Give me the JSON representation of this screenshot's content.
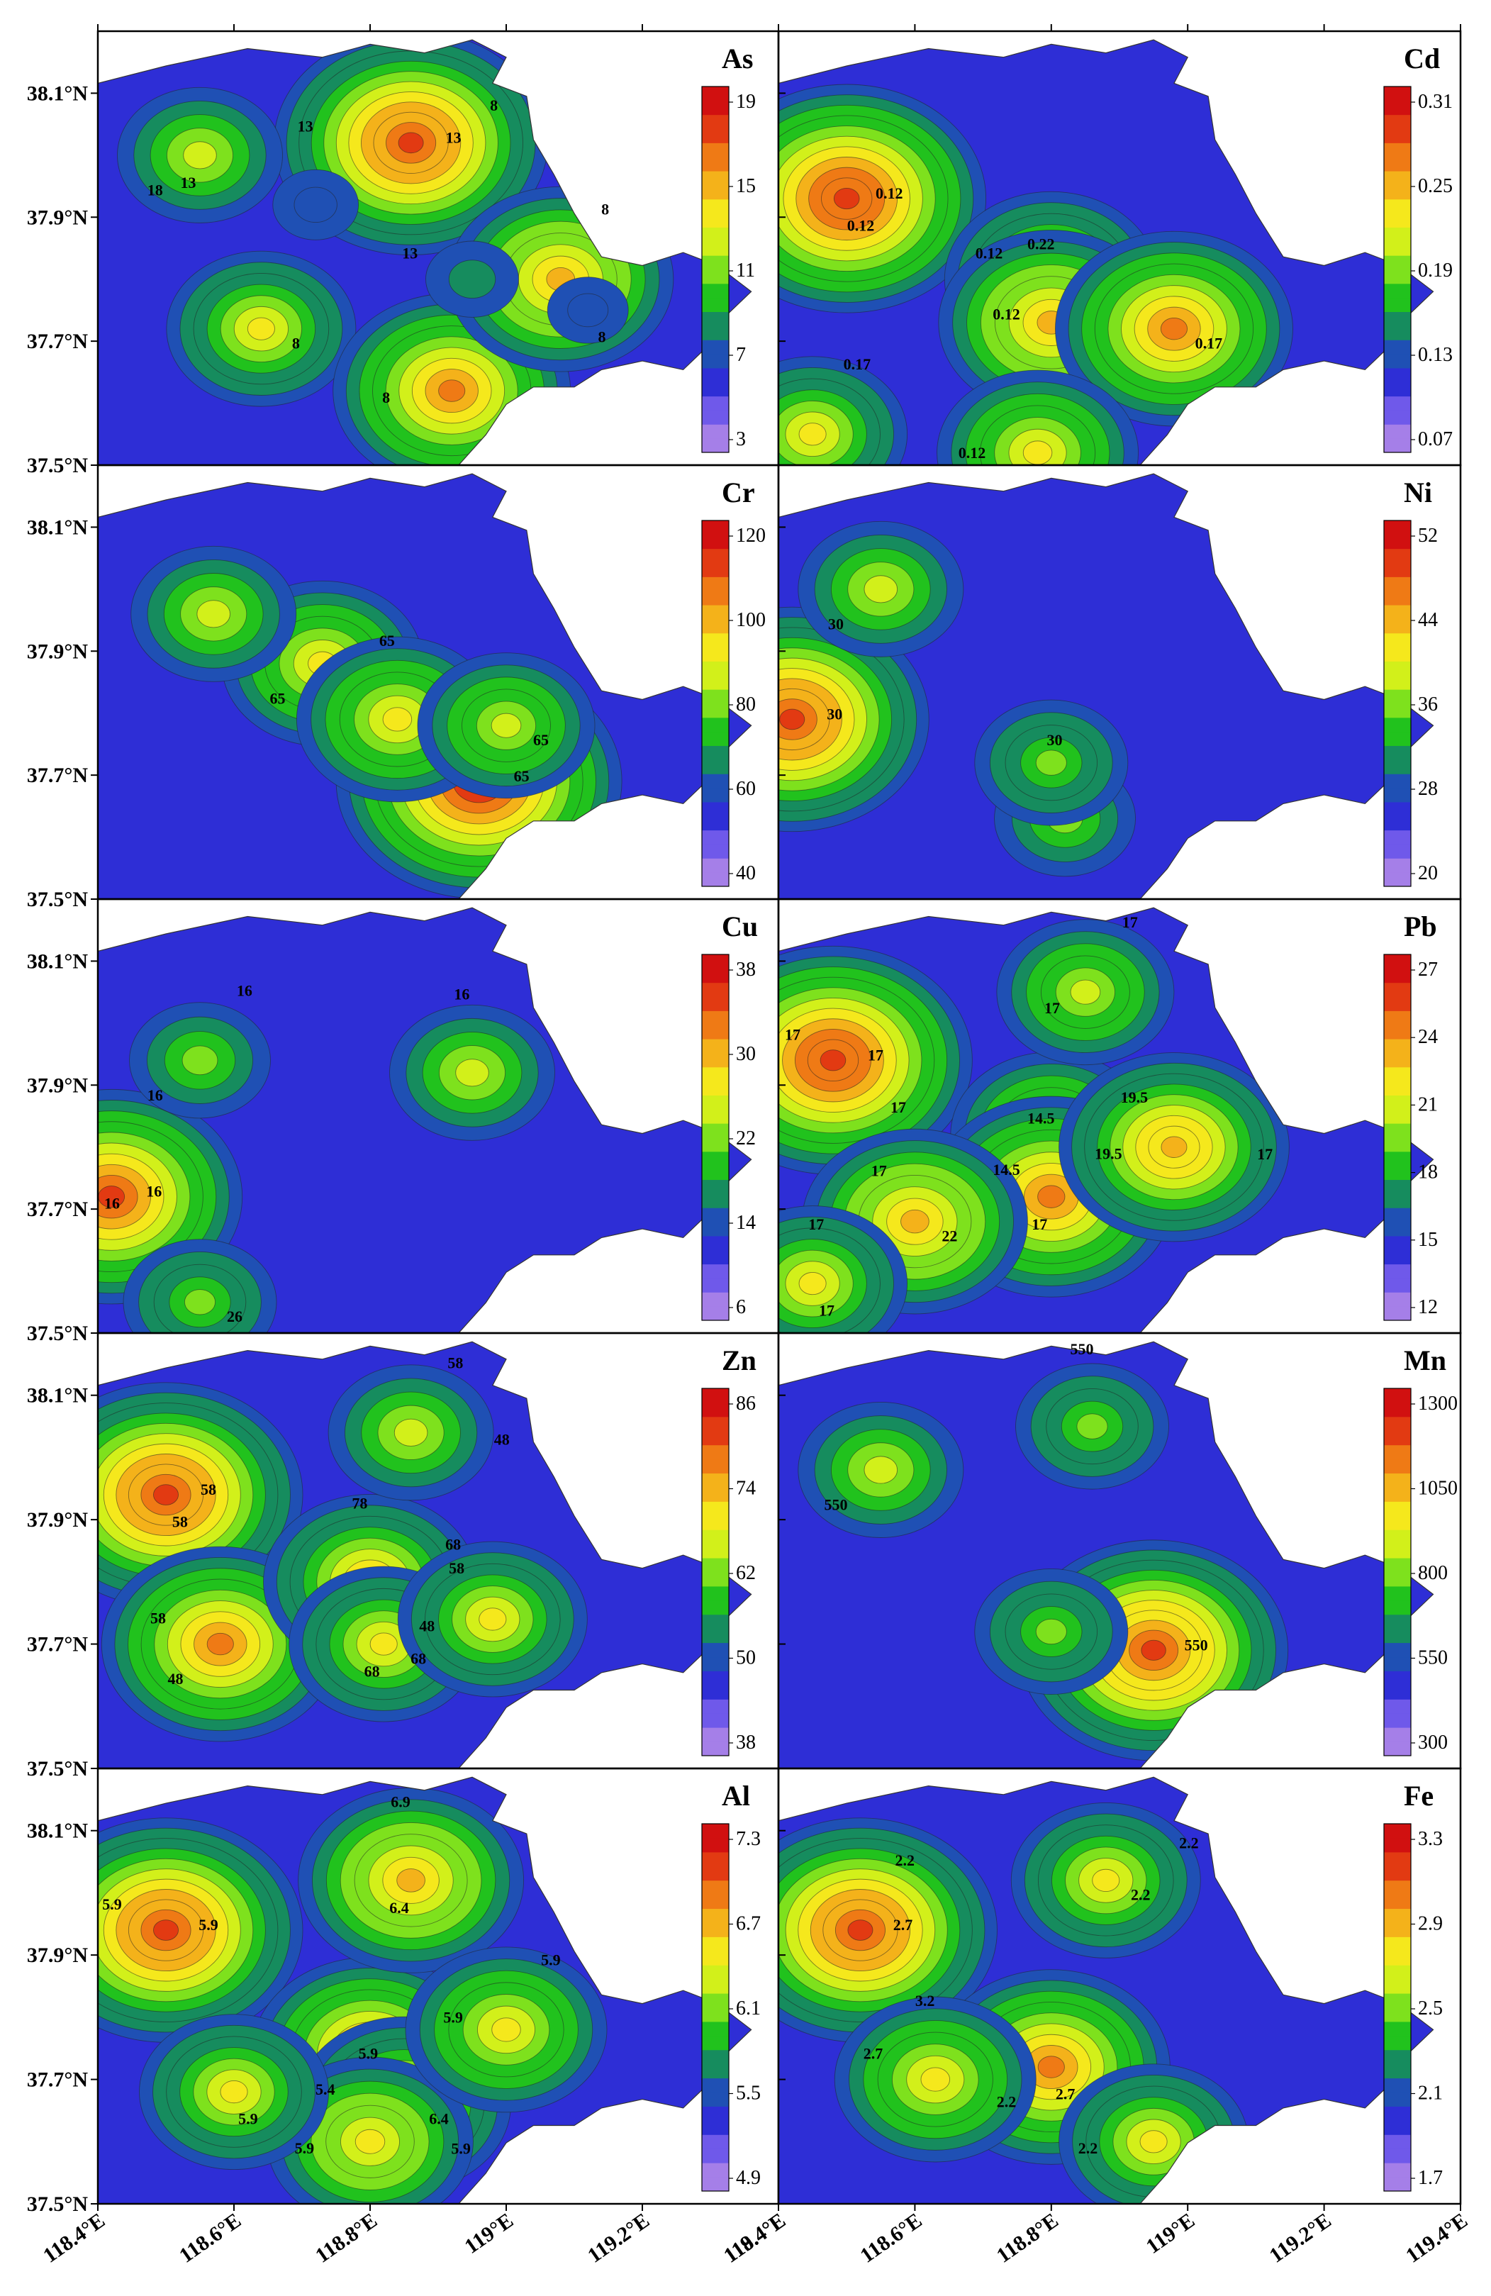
{
  "figure": {
    "latitude_ticks": [
      "38.1°N",
      "37.9°N",
      "37.7°N",
      "37.5°N"
    ],
    "longitude_ticks": [
      "118.4°E",
      "118.6°E",
      "118.8°E",
      "119°E",
      "119.2°E",
      "119.4°E"
    ]
  },
  "colors": {
    "ramp": [
      "#a57fe8",
      "#6f59ea",
      "#2e2ed6",
      "#1f50b4",
      "#168c5e",
      "#21c21d",
      "#7ee11d",
      "#d2f01a",
      "#f5e81c",
      "#f4b21a",
      "#ef7a15",
      "#e23a12",
      "#d11010"
    ],
    "contour": "#222222"
  },
  "panels": [
    {
      "element": "As",
      "colorbar_labels": [
        "19",
        "15",
        "11",
        "7",
        "3"
      ],
      "contour_labels": [
        "13",
        "18",
        "13",
        "8",
        "8",
        "8",
        "8",
        "13",
        "8",
        "13"
      ],
      "hotspots": [
        {
          "lon": 118.86,
          "lat": 38.02,
          "v": 0.9
        },
        {
          "lon": 118.55,
          "lat": 38.0,
          "v": 0.45
        },
        {
          "lon": 118.72,
          "lat": 37.92,
          "v": 0.12
        },
        {
          "lon": 118.64,
          "lat": 37.72,
          "v": 0.55
        },
        {
          "lon": 118.92,
          "lat": 37.62,
          "v": 0.75
        },
        {
          "lon": 119.08,
          "lat": 37.8,
          "v": 0.7
        },
        {
          "lon": 119.12,
          "lat": 37.75,
          "v": 0.1
        },
        {
          "lon": 118.95,
          "lat": 37.8,
          "v": 0.15
        }
      ]
    },
    {
      "element": "Cd",
      "colorbar_labels": [
        "0.31",
        "0.25",
        "0.19",
        "0.13",
        "0.07"
      ],
      "contour_labels": [
        "0.12",
        "0.12",
        "0.22",
        "0.17",
        "0.12",
        "0.17",
        "0.12",
        "0.12"
      ],
      "hotspots": [
        {
          "lon": 118.5,
          "lat": 37.93,
          "v": 0.92
        },
        {
          "lon": 118.8,
          "lat": 37.8,
          "v": 0.65
        },
        {
          "lon": 118.8,
          "lat": 37.73,
          "v": 0.7
        },
        {
          "lon": 118.98,
          "lat": 37.72,
          "v": 0.75
        },
        {
          "lon": 118.78,
          "lat": 37.52,
          "v": 0.6
        },
        {
          "lon": 118.45,
          "lat": 37.55,
          "v": 0.55
        }
      ]
    },
    {
      "element": "Cr",
      "colorbar_labels": [
        "120",
        "100",
        "80",
        "60",
        "40"
      ],
      "contour_labels": [
        "65",
        "65",
        "65",
        "65"
      ],
      "hotspots": [
        {
          "lon": 118.96,
          "lat": 37.69,
          "v": 0.95
        },
        {
          "lon": 118.73,
          "lat": 37.88,
          "v": 0.6
        },
        {
          "lon": 118.84,
          "lat": 37.79,
          "v": 0.6
        },
        {
          "lon": 119.0,
          "lat": 37.78,
          "v": 0.5
        },
        {
          "lon": 118.57,
          "lat": 37.96,
          "v": 0.45
        }
      ]
    },
    {
      "element": "Ni",
      "colorbar_labels": [
        "52",
        "44",
        "36",
        "28",
        "20"
      ],
      "contour_labels": [
        "30",
        "30",
        "30"
      ],
      "hotspots": [
        {
          "lon": 118.42,
          "lat": 37.79,
          "v": 0.9
        },
        {
          "lon": 118.55,
          "lat": 38.0,
          "v": 0.45
        },
        {
          "lon": 118.82,
          "lat": 37.63,
          "v": 0.35
        },
        {
          "lon": 118.8,
          "lat": 37.72,
          "v": 0.4
        }
      ]
    },
    {
      "element": "Cu",
      "colorbar_labels": [
        "38",
        "30",
        "22",
        "14",
        "6"
      ],
      "contour_labels": [
        "16",
        "16",
        "16",
        "26",
        "16",
        "16"
      ],
      "hotspots": [
        {
          "lon": 118.42,
          "lat": 37.72,
          "v": 0.85
        },
        {
          "lon": 118.55,
          "lat": 37.94,
          "v": 0.35
        },
        {
          "lon": 118.95,
          "lat": 37.92,
          "v": 0.45
        },
        {
          "lon": 118.55,
          "lat": 37.55,
          "v": 0.4
        }
      ]
    },
    {
      "element": "Pb",
      "colorbar_labels": [
        "27",
        "24",
        "21",
        "18",
        "15",
        "12"
      ],
      "contour_labels": [
        "17",
        "14.5",
        "14.5",
        "22",
        "19.5",
        "17",
        "17",
        "17",
        "19.5",
        "17",
        "17",
        "17",
        "17",
        "17",
        "17"
      ],
      "hotspots": [
        {
          "lon": 118.48,
          "lat": 37.94,
          "v": 0.92
        },
        {
          "lon": 118.8,
          "lat": 37.82,
          "v": 0.6
        },
        {
          "lon": 118.8,
          "lat": 37.72,
          "v": 0.78
        },
        {
          "lon": 118.6,
          "lat": 37.68,
          "v": 0.7
        },
        {
          "lon": 118.98,
          "lat": 37.8,
          "v": 0.72
        },
        {
          "lon": 118.85,
          "lat": 38.05,
          "v": 0.5
        },
        {
          "lon": 118.45,
          "lat": 37.58,
          "v": 0.55
        }
      ]
    },
    {
      "element": "Zn",
      "colorbar_labels": [
        "86",
        "74",
        "62",
        "50",
        "38"
      ],
      "contour_labels": [
        "58",
        "48",
        "78",
        "68",
        "48",
        "58",
        "58",
        "58",
        "68",
        "68",
        "58",
        "48"
      ],
      "hotspots": [
        {
          "lon": 118.5,
          "lat": 37.94,
          "v": 0.9
        },
        {
          "lon": 118.58,
          "lat": 37.7,
          "v": 0.75
        },
        {
          "lon": 118.8,
          "lat": 37.8,
          "v": 0.65
        },
        {
          "lon": 118.82,
          "lat": 37.7,
          "v": 0.55
        },
        {
          "lon": 118.98,
          "lat": 37.74,
          "v": 0.55
        },
        {
          "lon": 118.86,
          "lat": 38.04,
          "v": 0.45
        }
      ]
    },
    {
      "element": "Mn",
      "colorbar_labels": [
        "1300",
        "1050",
        "800",
        "550",
        "300"
      ],
      "contour_labels": [
        "550",
        "550",
        "550"
      ],
      "hotspots": [
        {
          "lon": 118.95,
          "lat": 37.69,
          "v": 0.88
        },
        {
          "lon": 118.55,
          "lat": 37.98,
          "v": 0.45
        },
        {
          "lon": 118.86,
          "lat": 38.05,
          "v": 0.4
        },
        {
          "lon": 118.8,
          "lat": 37.72,
          "v": 0.4
        }
      ]
    },
    {
      "element": "Al",
      "colorbar_labels": [
        "7.3",
        "6.7",
        "6.1",
        "5.5",
        "4.9"
      ],
      "contour_labels": [
        "5.9",
        "5.4",
        "6.9",
        "6.4",
        "5.9",
        "5.9",
        "5.9",
        "5.9",
        "5.9",
        "6.4",
        "5.9",
        "5.9"
      ],
      "hotspots": [
        {
          "lon": 118.5,
          "lat": 37.94,
          "v": 0.9
        },
        {
          "lon": 118.8,
          "lat": 37.74,
          "v": 0.75
        },
        {
          "lon": 118.86,
          "lat": 38.02,
          "v": 0.7
        },
        {
          "lon": 118.85,
          "lat": 37.66,
          "v": 0.65
        },
        {
          "lon": 118.8,
          "lat": 37.6,
          "v": 0.62
        },
        {
          "lon": 119.0,
          "lat": 37.78,
          "v": 0.6
        },
        {
          "lon": 118.6,
          "lat": 37.68,
          "v": 0.55
        }
      ]
    },
    {
      "element": "Fe",
      "colorbar_labels": [
        "3.3",
        "2.9",
        "2.5",
        "2.1",
        "1.7"
      ],
      "contour_labels": [
        "2.7",
        "2.2",
        "3.2",
        "2.2",
        "2.2",
        "2.2",
        "2.7",
        "2.7",
        "2.2"
      ],
      "hotspots": [
        {
          "lon": 118.52,
          "lat": 37.94,
          "v": 0.9
        },
        {
          "lon": 118.8,
          "lat": 37.72,
          "v": 0.75
        },
        {
          "lon": 118.63,
          "lat": 37.7,
          "v": 0.6
        },
        {
          "lon": 118.88,
          "lat": 38.02,
          "v": 0.55
        },
        {
          "lon": 118.95,
          "lat": 37.6,
          "v": 0.55
        }
      ]
    }
  ]
}
